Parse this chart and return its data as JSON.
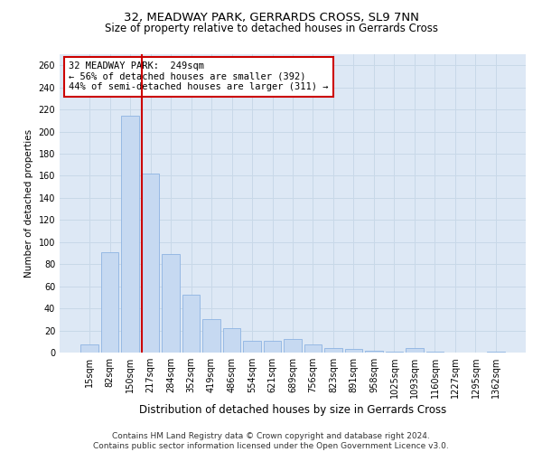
{
  "title": "32, MEADWAY PARK, GERRARDS CROSS, SL9 7NN",
  "subtitle": "Size of property relative to detached houses in Gerrards Cross",
  "xlabel": "Distribution of detached houses by size in Gerrards Cross",
  "ylabel": "Number of detached properties",
  "categories": [
    "15sqm",
    "82sqm",
    "150sqm",
    "217sqm",
    "284sqm",
    "352sqm",
    "419sqm",
    "486sqm",
    "554sqm",
    "621sqm",
    "689sqm",
    "756sqm",
    "823sqm",
    "891sqm",
    "958sqm",
    "1025sqm",
    "1093sqm",
    "1160sqm",
    "1227sqm",
    "1295sqm",
    "1362sqm"
  ],
  "values": [
    7,
    91,
    214,
    162,
    89,
    52,
    30,
    22,
    11,
    11,
    12,
    7,
    4,
    3,
    2,
    1,
    4,
    1,
    0,
    0,
    1
  ],
  "bar_color": "#c6d9f1",
  "bar_edge_color": "#8db3e2",
  "vertical_line_color": "#cc0000",
  "annotation_text": "32 MEADWAY PARK:  249sqm\n← 56% of detached houses are smaller (392)\n44% of semi-detached houses are larger (311) →",
  "annotation_box_color": "#ffffff",
  "annotation_box_edge_color": "#cc0000",
  "ylim": [
    0,
    270
  ],
  "yticks": [
    0,
    20,
    40,
    60,
    80,
    100,
    120,
    140,
    160,
    180,
    200,
    220,
    240,
    260
  ],
  "grid_color": "#c8d8e8",
  "background_color": "#dde8f5",
  "footer_text": "Contains HM Land Registry data © Crown copyright and database right 2024.\nContains public sector information licensed under the Open Government Licence v3.0.",
  "title_fontsize": 9.5,
  "subtitle_fontsize": 8.5,
  "xlabel_fontsize": 8.5,
  "ylabel_fontsize": 7.5,
  "tick_fontsize": 7,
  "annotation_fontsize": 7.5,
  "footer_fontsize": 6.5
}
